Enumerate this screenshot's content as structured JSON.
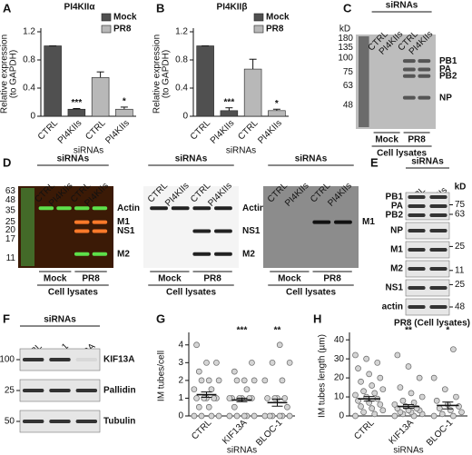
{
  "panels": [
    "A",
    "B",
    "C",
    "D",
    "E",
    "F",
    "G",
    "H"
  ],
  "chart_data": [
    {
      "type": "bar",
      "title": "PI4KIIα",
      "y_label": [
        "Relative expression",
        "(to GAPDH)"
      ],
      "categories": [
        "CTRL",
        "PI4KIIs",
        "CTRL",
        "PI4KIIs"
      ],
      "x_label": "siRNAs",
      "ylim": [
        0,
        1.2
      ],
      "yticks": [
        0,
        0.4,
        0.8,
        1.2
      ],
      "series": [
        {
          "name": "Mock",
          "color": "#505050",
          "values": [
            1,
            0.1,
            null,
            null
          ],
          "errors": [
            0,
            0.01,
            null,
            null
          ]
        },
        {
          "name": "PR8",
          "color": "#b8b8b8",
          "values": [
            null,
            null,
            0.55,
            0.1
          ],
          "errors": [
            null,
            null,
            0.08,
            0.03
          ]
        }
      ],
      "annotations": [
        {
          "text": "***",
          "category": 1
        },
        {
          "text": "*",
          "category": 3
        }
      ]
    },
    {
      "type": "bar",
      "title": "PI4KIIβ",
      "y_label": [
        "Relative expression",
        "(to GAPDH)"
      ],
      "categories": [
        "CTRL",
        "PI4KIIs",
        "CTRL",
        "PI4KIIs"
      ],
      "x_label": "siRNAs",
      "ylim": [
        0,
        1.2
      ],
      "yticks": [
        0,
        0.4,
        0.8,
        1.2
      ],
      "series": [
        {
          "name": "Mock",
          "color": "#505050",
          "values": [
            1,
            0.08,
            null,
            null
          ],
          "errors": [
            0,
            0.04,
            null,
            null
          ]
        },
        {
          "name": "PR8",
          "color": "#b8b8b8",
          "values": [
            null,
            null,
            0.67,
            0.08
          ],
          "errors": [
            null,
            null,
            0.14,
            0.02
          ]
        }
      ],
      "annotations": [
        {
          "text": "***",
          "category": 1
        },
        {
          "text": "*",
          "category": 3
        }
      ]
    },
    {
      "type": "dotplot",
      "y_label": [
        "IM tubes/cell"
      ],
      "categories": [
        "CTRL",
        "KIF13A",
        "BLOC-1"
      ],
      "x_label": "siRNAs",
      "ylim": [
        0,
        4.5
      ],
      "yticks": [
        0,
        1,
        2,
        3,
        4
      ],
      "color": "#d4d4d4",
      "values": [
        1.2,
        0.9,
        0.75
      ],
      "errors": [
        0.15,
        0.1,
        0.2
      ],
      "points": [
        [
          0,
          0,
          0,
          0,
          0.5,
          0.5,
          1,
          1,
          1,
          1,
          1,
          1.5,
          1.5,
          2,
          2,
          2,
          2.5,
          3,
          3,
          4
        ],
        [
          0,
          0,
          0,
          0,
          0,
          0.5,
          1,
          1,
          1,
          1,
          1,
          1,
          1.5,
          2,
          2,
          2,
          2.5,
          3
        ],
        [
          0,
          0,
          0,
          0,
          0,
          0,
          0.5,
          1,
          1,
          1,
          1,
          2,
          2,
          3,
          3,
          4
        ]
      ],
      "annotations": [
        {
          "text": "***",
          "category": 1
        },
        {
          "text": "**",
          "category": 2
        }
      ]
    },
    {
      "type": "dotplot",
      "y_label": [
        "IM tubes length (µm)"
      ],
      "categories": [
        "CTRL",
        "KIF13A",
        "BLOC-1"
      ],
      "x_label": "siRNAs",
      "ylim": [
        0,
        42
      ],
      "yticks": [
        0,
        10,
        20,
        30,
        40
      ],
      "color": "#d4d4d4",
      "values": [
        9,
        5,
        5.5
      ],
      "errors": [
        1.2,
        1,
        1.8
      ],
      "points": [
        [
          0,
          1,
          2,
          3,
          4,
          5,
          6,
          7,
          8,
          9,
          10,
          11,
          12,
          13,
          14,
          16,
          18,
          20,
          22,
          25,
          28,
          30,
          32
        ],
        [
          0,
          0,
          1,
          1,
          2,
          2,
          3,
          3,
          4,
          4,
          5,
          6,
          7,
          8,
          10,
          12,
          15,
          20,
          26,
          32
        ],
        [
          0,
          0,
          1,
          2,
          3,
          4,
          5,
          6,
          8,
          10,
          14,
          20,
          35
        ]
      ],
      "annotations": [
        {
          "text": "**",
          "category": 1
        },
        {
          "text": "*",
          "category": 2
        }
      ]
    }
  ],
  "blots": [
    {
      "header": "siRNAs",
      "lanes": [
        "CTRL",
        "PI4KIIs",
        "CTRL",
        "PI4KIIs"
      ],
      "marker_title": "kD",
      "markers": [
        180,
        135,
        100,
        75,
        63,
        48
      ],
      "bands": [
        "PB1",
        "PA",
        "PB2",
        "NP"
      ],
      "groups": [
        "Mock",
        "PR8"
      ],
      "footer": "Cell lysates"
    },
    {
      "header": "siRNAs",
      "lanes": [
        "CTRL",
        "PI4KIIs",
        "CTRL",
        "PI4KIIs"
      ],
      "markers": [
        63,
        48,
        35,
        25,
        20,
        17,
        11
      ],
      "bands": [
        "Actin",
        "M1",
        "NS1",
        "M2"
      ],
      "groups": [
        "Mock",
        "PR8"
      ],
      "footer": "Cell lysates"
    },
    {
      "header": "siRNAs",
      "lanes": [
        "CTRL",
        "PI4KIIs",
        "CTRL",
        "PI4KIIs"
      ],
      "bands": [
        "Actin",
        "NS1",
        "M2"
      ],
      "groups": [
        "Mock",
        "PR8"
      ],
      "footer": "Cell lysates"
    },
    {
      "header": "siRNAs",
      "lanes": [
        "CTRL",
        "PI4KIIs",
        "CTRL",
        "PI4KIIs"
      ],
      "bands": [
        "M1"
      ],
      "groups": [
        "Mock",
        "PR8"
      ],
      "footer": "Cell lysates"
    }
  ],
  "strip_blots": [
    {
      "header": "siRNAs",
      "lanes": [
        "CTRL",
        "PI4KIIs"
      ],
      "marker_title": "kD",
      "footer": "PR8 (Cell lysates)",
      "strips": [
        {
          "labels": [
            "PB1",
            "PA",
            "PB2"
          ],
          "markers": [
            75,
            63
          ]
        },
        {
          "labels": [
            "NP"
          ]
        },
        {
          "labels": [
            "M1"
          ],
          "markers": [
            25
          ]
        },
        {
          "labels": [
            "M2"
          ],
          "markers": [
            11
          ]
        },
        {
          "labels": [
            "NS1"
          ],
          "markers": [
            25
          ]
        },
        {
          "labels": [
            "actin"
          ],
          "markers": [
            48
          ]
        }
      ]
    },
    {
      "header": "siRNAs",
      "lanes": [
        "CTRL",
        "BLOC-1",
        "KIF13A"
      ],
      "strips": [
        {
          "labels": [
            "KIF13A"
          ],
          "markers": [
            100
          ]
        },
        {
          "labels": [
            "Pallidin"
          ],
          "markers": [
            25
          ]
        },
        {
          "labels": [
            "Tubulin"
          ],
          "markers": [
            50
          ]
        }
      ]
    }
  ]
}
